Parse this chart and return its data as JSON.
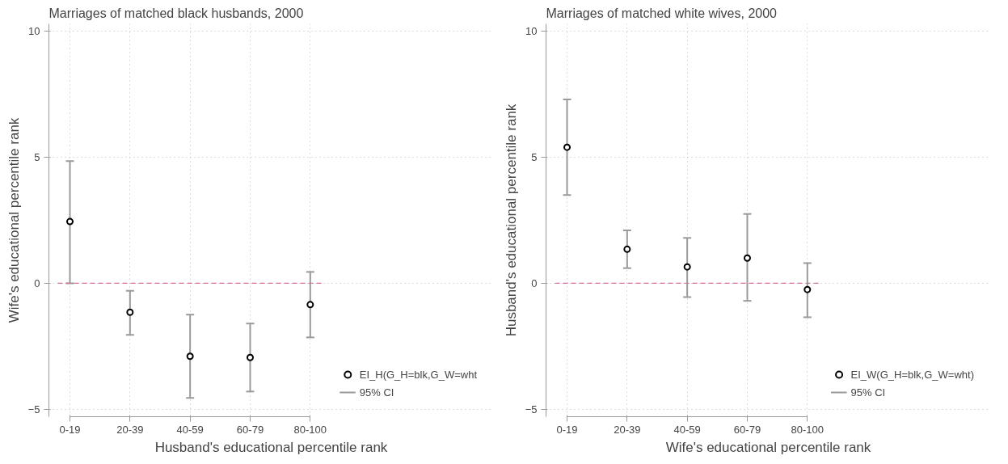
{
  "chart_data": [
    {
      "type": "scatter",
      "title": "Marriages of matched black husbands, 2000",
      "xlabel": "Husband's educational percentile rank",
      "ylabel": "Wife's educational percentile rank",
      "categories": [
        "0-19",
        "20-39",
        "40-59",
        "60-79",
        "80-100"
      ],
      "series": [
        {
          "name": "EI_H(G_H=blk,G_W=wht",
          "color": "#000000",
          "values": [
            2.45,
            -1.15,
            -2.9,
            -2.95,
            -0.85
          ],
          "errors": [
            [
              0.0,
              4.85
            ],
            [
              -2.05,
              -0.3
            ],
            [
              -4.55,
              -1.25
            ],
            [
              -4.3,
              -1.6
            ],
            [
              -2.15,
              0.45
            ]
          ]
        }
      ],
      "annotations": [
        "95% CI"
      ],
      "ylim": [
        -5.3,
        10.3
      ],
      "yticks": [
        -5,
        0,
        5,
        10
      ],
      "grid": true,
      "legend": "right",
      "marker": "circle",
      "ref_lines": [
        {
          "axis": "y",
          "value": 0,
          "color": "#d4709c",
          "line_style": "dashed"
        }
      ]
    },
    {
      "type": "scatter",
      "title": "Marriages of matched white wives, 2000",
      "xlabel": "Wife's educational percentile rank",
      "ylabel": "Husband's educational percentile rank",
      "categories": [
        "0-19",
        "20-39",
        "40-59",
        "60-79",
        "80-100"
      ],
      "series": [
        {
          "name": "EI_W(G_H=blk,G_W=wht)",
          "color": "#000000",
          "values": [
            5.4,
            1.35,
            0.65,
            1.0,
            -0.25
          ],
          "errors": [
            [
              3.5,
              7.3
            ],
            [
              0.6,
              2.1
            ],
            [
              -0.55,
              1.8
            ],
            [
              -0.7,
              2.75
            ],
            [
              -1.35,
              0.8
            ]
          ]
        }
      ],
      "annotations": [
        "95% CI"
      ],
      "ylim": [
        -5.3,
        10.3
      ],
      "yticks": [
        -5,
        0,
        5,
        10
      ],
      "grid": true,
      "legend": "right",
      "marker": "circle",
      "ref_lines": [
        {
          "axis": "y",
          "value": 0,
          "color": "#d4709c",
          "line_style": "dashed"
        }
      ]
    }
  ]
}
